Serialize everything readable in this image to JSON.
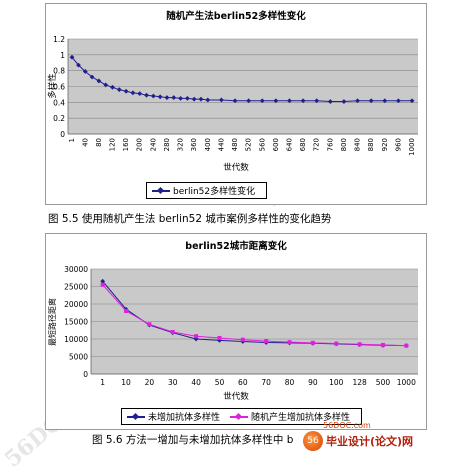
{
  "chart_data": [
    {
      "type": "line",
      "title": "随机产生法berlin52多样性变化",
      "xlabel": "世代数",
      "ylabel": "多样性",
      "ylim": [
        0,
        1.2
      ],
      "yticks": [
        "0",
        "0.2",
        "0.4",
        "0.6",
        "0.8",
        "1",
        "1.2"
      ],
      "xticks": [
        "1",
        "40",
        "80",
        "120",
        "160",
        "200",
        "240",
        "280",
        "320",
        "360",
        "400",
        "440",
        "480",
        "520",
        "560",
        "600",
        "640",
        "680",
        "720",
        "760",
        "800",
        "840",
        "880",
        "920",
        "960",
        "1000"
      ],
      "grid": true,
      "legend_position": "bottom-left",
      "series": [
        {
          "name": "berlin52多样性变化",
          "color": "#1f1f8f",
          "x": [
            1,
            20,
            40,
            60,
            80,
            100,
            120,
            140,
            160,
            180,
            200,
            220,
            240,
            260,
            280,
            300,
            320,
            340,
            360,
            380,
            400,
            440,
            480,
            520,
            560,
            600,
            640,
            680,
            720,
            760,
            800,
            840,
            880,
            920,
            960,
            1000
          ],
          "values": [
            0.97,
            0.87,
            0.79,
            0.72,
            0.67,
            0.62,
            0.59,
            0.56,
            0.54,
            0.52,
            0.51,
            0.49,
            0.48,
            0.47,
            0.46,
            0.46,
            0.45,
            0.45,
            0.44,
            0.44,
            0.43,
            0.43,
            0.42,
            0.42,
            0.42,
            0.42,
            0.42,
            0.42,
            0.42,
            0.41,
            0.41,
            0.42,
            0.42,
            0.42,
            0.42,
            0.42
          ]
        }
      ]
    },
    {
      "type": "line",
      "title": "berlin52城市距离变化",
      "xlabel": "世代数",
      "ylabel": "最短路径距离",
      "ylim": [
        0,
        30000
      ],
      "yticks": [
        "0",
        "5000",
        "10000",
        "15000",
        "20000",
        "25000",
        "30000"
      ],
      "categories": [
        "1",
        "10",
        "20",
        "30",
        "40",
        "50",
        "60",
        "70",
        "80",
        "90",
        "100",
        "128",
        "500",
        "1000"
      ],
      "grid": true,
      "legend_position": "bottom",
      "series": [
        {
          "name": "未增加抗体多样性",
          "color": "#1f1f8f",
          "values": [
            26500,
            18500,
            14000,
            11800,
            10000,
            9600,
            9300,
            9000,
            8900,
            8800,
            8600,
            8400,
            8200,
            8100
          ]
        },
        {
          "name": "随机产生增加抗体多样性",
          "color": "#e020e0",
          "values": [
            25500,
            18000,
            14200,
            12000,
            10800,
            10300,
            9800,
            9400,
            9100,
            8900,
            8700,
            8500,
            8300,
            8100
          ]
        }
      ]
    }
  ],
  "captions": {
    "fig55": "图 5.5  使用随机产生法 berlin52 城市案例多样性的变化趋势",
    "fig56": "图 5.6  方法一增加与未增加抗体多样性中 b"
  },
  "logo": {
    "site": "56DOC.com",
    "name": "毕业设计(论文)网"
  }
}
